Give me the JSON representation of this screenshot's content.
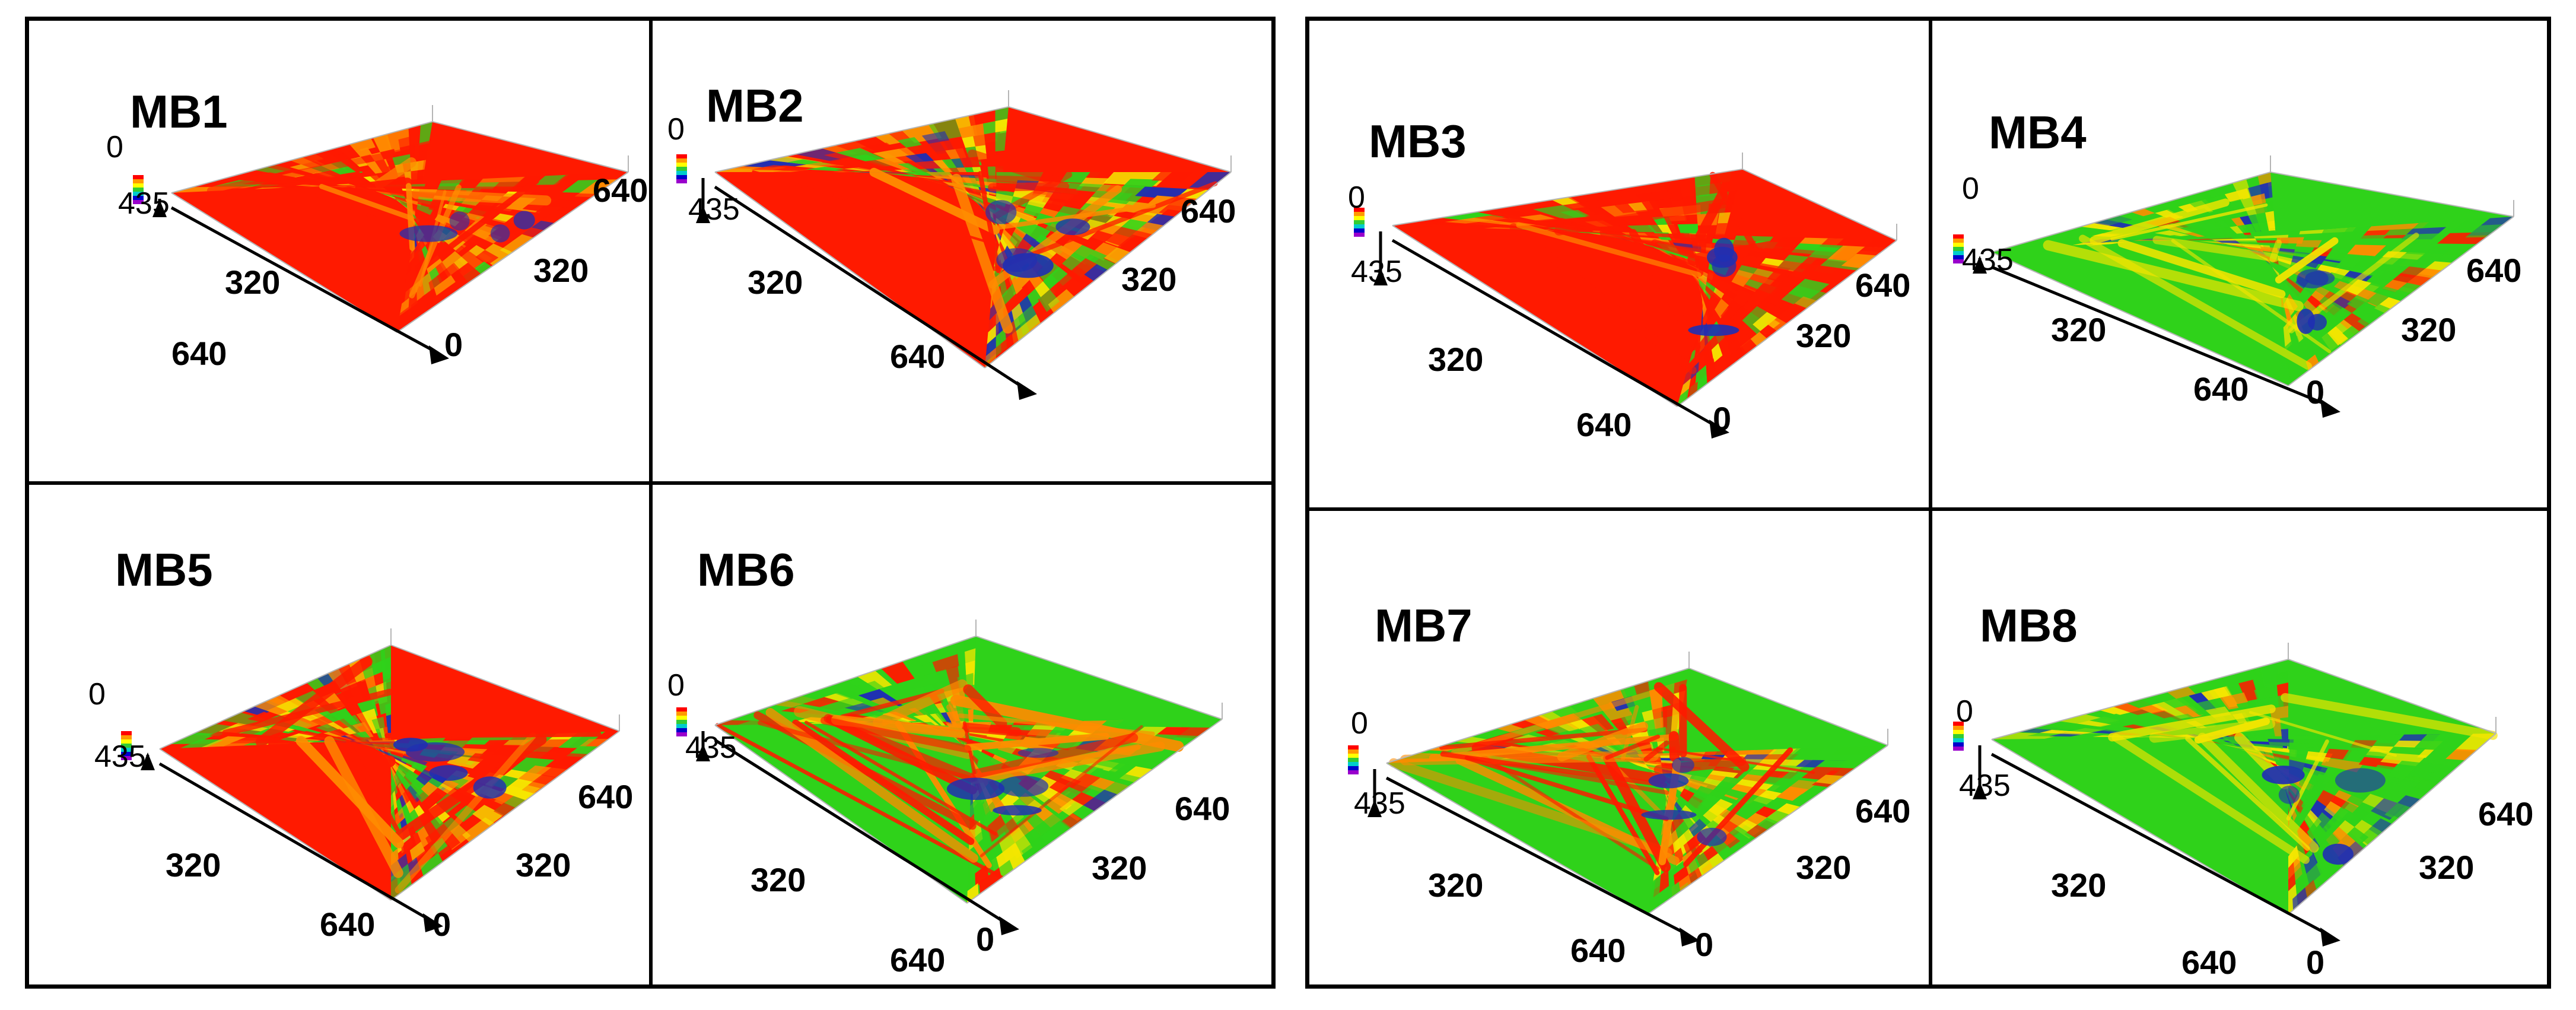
{
  "panels": [
    {
      "label": "MB1",
      "zmax": "435",
      "zmin": "0",
      "xmid": "320",
      "xend": "640",
      "origin": "0",
      "ymid": "320",
      "yend": "640",
      "dominant": "red"
    },
    {
      "label": "MB2",
      "zmax": "435",
      "zmin": "0",
      "xmid": "320",
      "xend": "640",
      "origin": "",
      "ymid": "320",
      "yend": "640",
      "dominant": "mixed"
    },
    {
      "label": "MB3",
      "zmax": "435",
      "zmin": "0",
      "xmid": "320",
      "xend": "640",
      "origin": "0",
      "ymid": "320",
      "yend": "640",
      "dominant": "red"
    },
    {
      "label": "MB4",
      "zmax": "435",
      "zmin": "0",
      "xmid": "320",
      "xend": "640",
      "origin": "0",
      "ymid": "320",
      "yend": "640",
      "dominant": "green"
    },
    {
      "label": "MB5",
      "zmax": "435",
      "zmin": "0",
      "xmid": "320",
      "xend": "640",
      "origin": "0",
      "ymid": "320",
      "yend": "640",
      "dominant": "mixed"
    },
    {
      "label": "MB6",
      "zmax": "435",
      "zmin": "0",
      "xmid": "320",
      "xend": "640",
      "origin": "0",
      "ymid": "320",
      "yend": "640",
      "dominant": "fibers"
    },
    {
      "label": "MB7",
      "zmax": "435",
      "zmin": "0",
      "xmid": "320",
      "xend": "640",
      "origin": "0",
      "ymid": "320",
      "yend": "640",
      "dominant": "fibers-light"
    },
    {
      "label": "MB8",
      "zmax": "435",
      "zmin": "0",
      "xmid": "320",
      "xend": "640",
      "origin": "0",
      "ymid": "320",
      "yend": "640",
      "dominant": "green"
    }
  ],
  "colors": {
    "red": "#ff1a00",
    "orange": "#ff8c00",
    "yellow": "#f5e600",
    "green": "#2fd21a",
    "blue": "#1f2fb3",
    "border": "#000000"
  },
  "colorbar": [
    "#ff0000",
    "#ff9900",
    "#ffff00",
    "#33cc33",
    "#00cccc",
    "#0000cc",
    "#9900cc"
  ]
}
